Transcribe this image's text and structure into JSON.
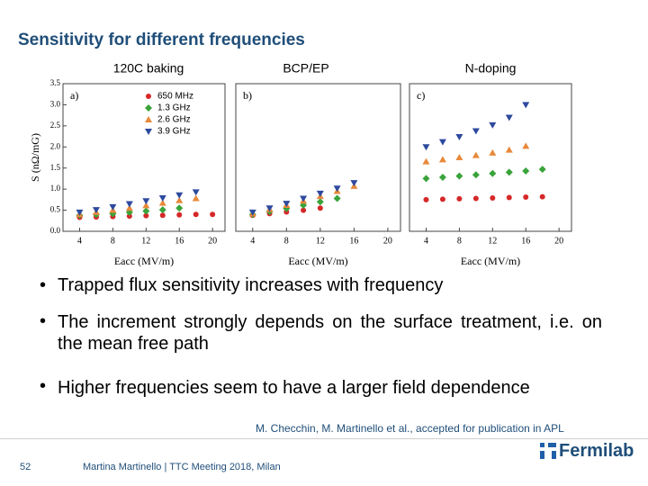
{
  "header": {
    "title": "Sensitivity for different frequencies"
  },
  "chart_data": [
    {
      "type": "scatter",
      "heading": "120C baking",
      "panel_label": "a)",
      "x_label": "Eacc (MV/m)",
      "y_label": "S (nΩ/mG)",
      "xlim": [
        2,
        21.5
      ],
      "xticks": [
        4,
        8,
        12,
        16,
        20
      ],
      "ylim": [
        0,
        3.5
      ],
      "yticks": [
        {
          "value": 0,
          "label": "0.0"
        },
        0.5,
        {
          "value": 1,
          "label": "1.0"
        },
        1.5,
        {
          "value": 2,
          "label": "2.0"
        },
        2.5,
        {
          "value": 3,
          "label": "3.0"
        },
        3.5
      ],
      "x": [
        4,
        6,
        8,
        10,
        12,
        14,
        16,
        18,
        20
      ],
      "series": [
        {
          "name": "650 MHz",
          "color": "#d62828",
          "marker": "circle",
          "values": [
            0.33,
            0.34,
            0.35,
            0.36,
            0.37,
            0.38,
            0.39,
            0.4,
            0.4
          ]
        },
        {
          "name": "1.3 GHz",
          "color": "#3aa33a",
          "marker": "diamond",
          "values": [
            0.38,
            0.4,
            0.42,
            0.45,
            0.48,
            0.51,
            0.55,
            null,
            null
          ]
        },
        {
          "name": "2.6 GHz",
          "color": "#e8893a",
          "marker": "triangle-up",
          "values": [
            0.4,
            0.45,
            0.5,
            0.55,
            0.61,
            0.67,
            0.73,
            0.78,
            null
          ]
        },
        {
          "name": "3.9 GHz",
          "color": "#2e4a9e",
          "marker": "triangle-down",
          "values": [
            0.45,
            0.51,
            0.58,
            0.65,
            0.72,
            0.79,
            0.86,
            0.93,
            null
          ]
        }
      ]
    },
    {
      "type": "scatter",
      "heading": "BCP/EP",
      "panel_label": "b)",
      "x_label": "Eacc (MV/m)",
      "xlim": [
        2,
        21.5
      ],
      "xticks": [
        4,
        8,
        12,
        16,
        20
      ],
      "ylim": [
        0,
        3.5
      ],
      "x": [
        4,
        6,
        8,
        10,
        12,
        14,
        16,
        18,
        20
      ],
      "series": [
        {
          "color": "#d62828",
          "marker": "circle",
          "values": [
            0.38,
            0.42,
            0.46,
            0.5,
            0.55,
            null,
            null,
            null,
            null
          ]
        },
        {
          "color": "#3aa33a",
          "marker": "diamond",
          "values": [
            0.4,
            0.47,
            0.54,
            0.62,
            0.7,
            0.78,
            null,
            null,
            null
          ]
        },
        {
          "color": "#e8893a",
          "marker": "triangle-up",
          "values": [
            0.42,
            0.52,
            0.62,
            0.72,
            0.83,
            0.95,
            1.07,
            null,
            null
          ]
        },
        {
          "color": "#2e4a9e",
          "marker": "triangle-down",
          "values": [
            0.45,
            0.55,
            0.66,
            0.78,
            0.9,
            1.02,
            1.15,
            null,
            null
          ]
        }
      ]
    },
    {
      "type": "scatter",
      "heading": "N-doping",
      "panel_label": "c)",
      "x_label": "Eacc (MV/m)",
      "xlim": [
        2,
        21.5
      ],
      "xticks": [
        4,
        8,
        12,
        16,
        20
      ],
      "ylim": [
        0,
        3.5
      ],
      "x": [
        4,
        6,
        8,
        10,
        12,
        14,
        16,
        18,
        20
      ],
      "series": [
        {
          "color": "#d62828",
          "marker": "circle",
          "values": [
            0.75,
            0.76,
            0.77,
            0.78,
            0.79,
            0.8,
            0.81,
            0.82,
            null
          ]
        },
        {
          "color": "#3aa33a",
          "marker": "diamond",
          "values": [
            1.25,
            1.28,
            1.31,
            1.34,
            1.37,
            1.4,
            1.43,
            1.47,
            null
          ]
        },
        {
          "color": "#e8893a",
          "marker": "triangle-up",
          "values": [
            1.65,
            1.7,
            1.75,
            1.8,
            1.86,
            1.93,
            2.02,
            null,
            null
          ]
        },
        {
          "color": "#2e4a9e",
          "marker": "triangle-down",
          "values": [
            2.0,
            2.12,
            2.24,
            2.38,
            2.52,
            2.7,
            3.0,
            null,
            null
          ]
        }
      ]
    }
  ],
  "bullets": [
    {
      "text": "Trapped flux sensitivity increases with frequency",
      "sub": [
        "The increment strongly depends on the surface treatment, i.e. on the mean free path",
        "Higher frequencies seem to have a larger field dependence"
      ]
    }
  ],
  "citation": "M. Checchin, M. Martinello et al., accepted for publication in APL",
  "footer": {
    "page": "52",
    "author": "Martina Martinello | TTC Meeting 2018, Milan",
    "logo": "Fermilab"
  }
}
